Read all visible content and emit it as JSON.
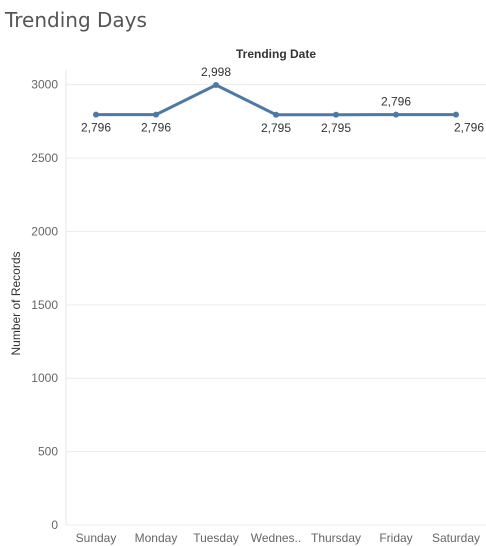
{
  "page": {
    "title": "Trending Days"
  },
  "chart_data": {
    "type": "line",
    "header": "Trending Date",
    "xlabel": "",
    "ylabel": "Number of Records",
    "categories": [
      "Sunday",
      "Monday",
      "Tuesday",
      "Wednes..",
      "Thursday",
      "Friday",
      "Saturday"
    ],
    "values": [
      2796,
      2796,
      2998,
      2795,
      2795,
      2796,
      2796
    ],
    "data_labels": [
      "2,796",
      "2,796",
      "2,998",
      "2,795",
      "2,795",
      "2,796",
      "2,796"
    ],
    "label_positions": [
      "below",
      "below",
      "above",
      "below",
      "below",
      "above",
      "below"
    ],
    "yticks": [
      0,
      500,
      1000,
      1500,
      2000,
      2500,
      3000
    ],
    "ylim": [
      0,
      3100
    ],
    "grid": true,
    "line_color": "#4e79a7"
  }
}
